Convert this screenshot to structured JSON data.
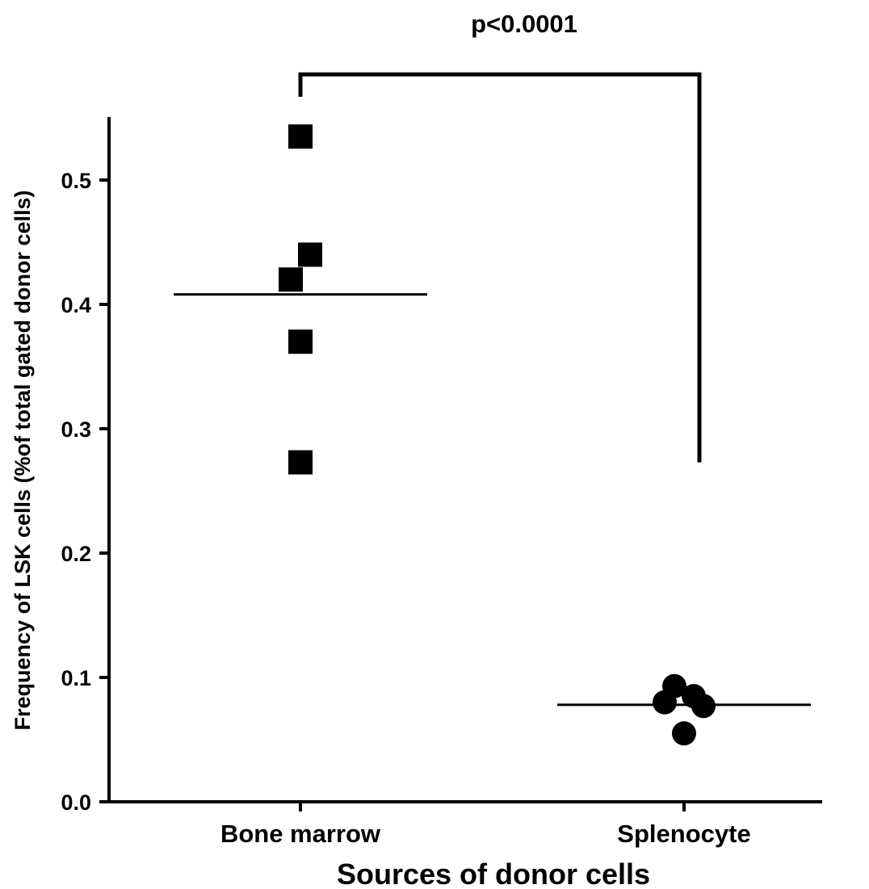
{
  "chart_data": {
    "type": "scatter",
    "title": "",
    "xlabel": "Sources of donor cells",
    "ylabel": "Frequency of LSK cells (%of total gated donor cells)",
    "ylim": [
      0,
      0.55
    ],
    "yticks": [
      0.0,
      0.1,
      0.2,
      0.3,
      0.4,
      0.5
    ],
    "ytick_labels": [
      "0.0",
      "0.1",
      "0.2",
      "0.3",
      "0.4",
      "0.5"
    ],
    "grid": false,
    "legend": "none",
    "categories": [
      "Bone marrow",
      "Splenocyte"
    ],
    "series": [
      {
        "category": "Bone marrow",
        "marker": "square",
        "values": [
          0.535,
          0.44,
          0.42,
          0.37,
          0.273
        ],
        "jitter": [
          0,
          0.1,
          -0.1,
          0,
          0
        ],
        "mean": 0.408
      },
      {
        "category": "Splenocyte",
        "marker": "circle",
        "values": [
          0.093,
          0.085,
          0.08,
          0.077,
          0.055
        ],
        "jitter": [
          -0.1,
          0.1,
          -0.2,
          0.2,
          0
        ],
        "mean": 0.078
      }
    ],
    "annotation": {
      "text": "p<0.0001",
      "from": "Bone marrow",
      "to": "Splenocyte",
      "left_end": 0.567,
      "right_end": 0.273,
      "bar_level": 0.585
    },
    "colors": {
      "marker": "#000000",
      "axis": "#000000"
    }
  }
}
